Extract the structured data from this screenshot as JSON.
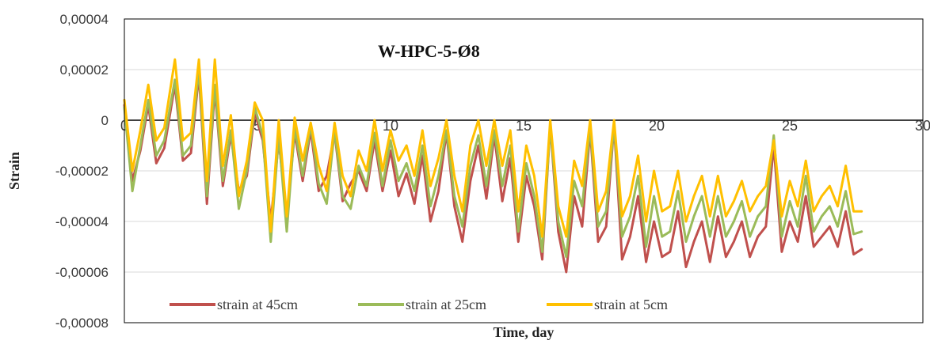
{
  "chart_data": {
    "type": "line",
    "title": "W-HPC-5-Ø8",
    "xlabel": "Time, day",
    "ylabel": "Strain",
    "xlim": [
      0,
      30
    ],
    "ylim": [
      -8e-05,
      4e-05
    ],
    "x_ticks": [
      0,
      5,
      10,
      15,
      20,
      25,
      30
    ],
    "x_tick_labels": [
      "0",
      "5",
      "10",
      "15",
      "20",
      "25",
      "30"
    ],
    "y_ticks": [
      4e-05,
      2e-05,
      0,
      -2e-05,
      -4e-05,
      -6e-05,
      -8e-05
    ],
    "y_tick_labels": [
      "0,00004",
      "0,00002",
      "0",
      "-0,00002",
      "-0,00004",
      "-0,00006",
      "-0,00008"
    ],
    "grid": "horizontal",
    "legend_position": "bottom-left",
    "series": [
      {
        "name": "strain at 45cm",
        "color": "#c0504d",
        "points": [
          [
            0,
            6e-06
          ],
          [
            0.3,
            -2.4e-05
          ],
          [
            0.6,
            -1.2e-05
          ],
          [
            0.9,
            6e-06
          ],
          [
            1.2,
            -1.7e-05
          ],
          [
            1.5,
            -1.1e-05
          ],
          [
            1.9,
            1.4e-05
          ],
          [
            2.2,
            -1.6e-05
          ],
          [
            2.5,
            -1.3e-05
          ],
          [
            2.8,
            1.8e-05
          ],
          [
            3.1,
            -3.3e-05
          ],
          [
            3.4,
            1.2e-05
          ],
          [
            3.7,
            -2.6e-05
          ],
          [
            4.0,
            -6e-06
          ],
          [
            4.3,
            -2.8e-05
          ],
          [
            4.6,
            -2.2e-05
          ],
          [
            4.9,
            3e-06
          ],
          [
            5.2,
            -8e-06
          ],
          [
            5.5,
            -4e-05
          ],
          [
            5.8,
            -8e-06
          ],
          [
            6.1,
            -3.8e-05
          ],
          [
            6.4,
            -5e-06
          ],
          [
            6.7,
            -2.4e-05
          ],
          [
            7.0,
            -4e-06
          ],
          [
            7.3,
            -2.8e-05
          ],
          [
            7.6,
            -2.2e-05
          ],
          [
            7.9,
            -5e-06
          ],
          [
            8.2,
            -3.2e-05
          ],
          [
            8.5,
            -2.5e-05
          ],
          [
            8.8,
            -2e-05
          ],
          [
            9.1,
            -2.8e-05
          ],
          [
            9.4,
            -8e-06
          ],
          [
            9.7,
            -2.8e-05
          ],
          [
            10.0,
            -1.2e-05
          ],
          [
            10.3,
            -3e-05
          ],
          [
            10.6,
            -2.1e-05
          ],
          [
            10.9,
            -3.3e-05
          ],
          [
            11.2,
            -1.4e-05
          ],
          [
            11.5,
            -4e-05
          ],
          [
            11.8,
            -2.8e-05
          ],
          [
            12.1,
            -5e-06
          ],
          [
            12.4,
            -3.4e-05
          ],
          [
            12.7,
            -4.8e-05
          ],
          [
            13.0,
            -2.4e-05
          ],
          [
            13.3,
            -1e-05
          ],
          [
            13.6,
            -3.1e-05
          ],
          [
            13.9,
            -6e-06
          ],
          [
            14.2,
            -3.2e-05
          ],
          [
            14.5,
            -1.5e-05
          ],
          [
            14.8,
            -4.8e-05
          ],
          [
            15.1,
            -2.2e-05
          ],
          [
            15.4,
            -3.4e-05
          ],
          [
            15.7,
            -5.5e-05
          ],
          [
            16.0,
            -2e-06
          ],
          [
            16.3,
            -4.4e-05
          ],
          [
            16.6,
            -6e-05
          ],
          [
            16.9,
            -3e-05
          ],
          [
            17.2,
            -4.2e-05
          ],
          [
            17.5,
            -4e-06
          ],
          [
            17.8,
            -4.8e-05
          ],
          [
            18.1,
            -4.2e-05
          ],
          [
            18.4,
            -2e-06
          ],
          [
            18.7,
            -5.5e-05
          ],
          [
            19.0,
            -4.6e-05
          ],
          [
            19.3,
            -3e-05
          ],
          [
            19.6,
            -5.6e-05
          ],
          [
            19.9,
            -4e-05
          ],
          [
            20.2,
            -5.4e-05
          ],
          [
            20.5,
            -5.2e-05
          ],
          [
            20.8,
            -3.6e-05
          ],
          [
            21.1,
            -5.8e-05
          ],
          [
            21.4,
            -4.8e-05
          ],
          [
            21.7,
            -4e-05
          ],
          [
            22.0,
            -5.6e-05
          ],
          [
            22.3,
            -3.8e-05
          ],
          [
            22.6,
            -5.4e-05
          ],
          [
            22.9,
            -4.8e-05
          ],
          [
            23.2,
            -4e-05
          ],
          [
            23.5,
            -5.4e-05
          ],
          [
            23.8,
            -4.6e-05
          ],
          [
            24.1,
            -4.2e-05
          ],
          [
            24.4,
            -1e-05
          ],
          [
            24.7,
            -5.2e-05
          ],
          [
            25.0,
            -4e-05
          ],
          [
            25.3,
            -4.8e-05
          ],
          [
            25.6,
            -3e-05
          ],
          [
            25.9,
            -5e-05
          ],
          [
            26.2,
            -4.6e-05
          ],
          [
            26.5,
            -4.2e-05
          ],
          [
            26.8,
            -5e-05
          ],
          [
            27.1,
            -3.6e-05
          ],
          [
            27.4,
            -5.3e-05
          ],
          [
            27.7,
            -5.1e-05
          ]
        ]
      },
      {
        "name": "strain at 25cm",
        "color": "#9bbb59",
        "points": [
          [
            0,
            5e-06
          ],
          [
            0.3,
            -2.8e-05
          ],
          [
            0.6,
            -1e-05
          ],
          [
            0.9,
            8e-06
          ],
          [
            1.2,
            -1.4e-05
          ],
          [
            1.5,
            -8e-06
          ],
          [
            1.9,
            1.6e-05
          ],
          [
            2.2,
            -1.4e-05
          ],
          [
            2.5,
            -1e-05
          ],
          [
            2.8,
            2e-05
          ],
          [
            3.1,
            -3e-05
          ],
          [
            3.4,
            1.4e-05
          ],
          [
            3.7,
            -2.4e-05
          ],
          [
            4.0,
            -4e-06
          ],
          [
            4.3,
            -3.5e-05
          ],
          [
            4.6,
            -2e-05
          ],
          [
            4.9,
            5e-06
          ],
          [
            5.2,
            -6e-06
          ],
          [
            5.5,
            -4.8e-05
          ],
          [
            5.8,
            -6e-06
          ],
          [
            6.1,
            -4.4e-05
          ],
          [
            6.4,
            -3e-06
          ],
          [
            6.7,
            -2.2e-05
          ],
          [
            7.0,
            -2e-06
          ],
          [
            7.3,
            -2.5e-05
          ],
          [
            7.6,
            -3.3e-05
          ],
          [
            7.9,
            -4e-06
          ],
          [
            8.2,
            -3e-05
          ],
          [
            8.5,
            -3.5e-05
          ],
          [
            8.8,
            -1.8e-05
          ],
          [
            9.1,
            -2.6e-05
          ],
          [
            9.4,
            -5e-06
          ],
          [
            9.7,
            -2.6e-05
          ],
          [
            10.0,
            -8e-06
          ],
          [
            10.3,
            -2.4e-05
          ],
          [
            10.6,
            -1.7e-05
          ],
          [
            10.9,
            -2.8e-05
          ],
          [
            11.2,
            -1e-05
          ],
          [
            11.5,
            -3.4e-05
          ],
          [
            11.8,
            -2.2e-05
          ],
          [
            12.1,
            -4e-06
          ],
          [
            12.4,
            -3e-05
          ],
          [
            12.7,
            -4.2e-05
          ],
          [
            13.0,
            -1.8e-05
          ],
          [
            13.3,
            -6e-06
          ],
          [
            13.6,
            -2.6e-05
          ],
          [
            13.9,
            -4e-06
          ],
          [
            14.2,
            -2.6e-05
          ],
          [
            14.5,
            -1e-05
          ],
          [
            14.8,
            -4.4e-05
          ],
          [
            15.1,
            -1.7e-05
          ],
          [
            15.4,
            -3e-05
          ],
          [
            15.7,
            -5.2e-05
          ],
          [
            16.0,
            -2e-06
          ],
          [
            16.3,
            -4e-05
          ],
          [
            16.6,
            -5.4e-05
          ],
          [
            16.9,
            -2.4e-05
          ],
          [
            17.2,
            -3.4e-05
          ],
          [
            17.5,
            -3e-06
          ],
          [
            17.8,
            -4.2e-05
          ],
          [
            18.1,
            -3.6e-05
          ],
          [
            18.4,
            -2e-06
          ],
          [
            18.7,
            -4.6e-05
          ],
          [
            19.0,
            -3.8e-05
          ],
          [
            19.3,
            -2.2e-05
          ],
          [
            19.6,
            -5e-05
          ],
          [
            19.9,
            -3e-05
          ],
          [
            20.2,
            -4.6e-05
          ],
          [
            20.5,
            -4.4e-05
          ],
          [
            20.8,
            -2.8e-05
          ],
          [
            21.1,
            -4.8e-05
          ],
          [
            21.4,
            -3.8e-05
          ],
          [
            21.7,
            -3e-05
          ],
          [
            22.0,
            -4.6e-05
          ],
          [
            22.3,
            -3e-05
          ],
          [
            22.6,
            -4.6e-05
          ],
          [
            22.9,
            -4e-05
          ],
          [
            23.2,
            -3.2e-05
          ],
          [
            23.5,
            -4.6e-05
          ],
          [
            23.8,
            -3.8e-05
          ],
          [
            24.1,
            -3.4e-05
          ],
          [
            24.4,
            -6e-06
          ],
          [
            24.7,
            -4.6e-05
          ],
          [
            25.0,
            -3.2e-05
          ],
          [
            25.3,
            -4.2e-05
          ],
          [
            25.6,
            -2.2e-05
          ],
          [
            25.9,
            -4.4e-05
          ],
          [
            26.2,
            -3.8e-05
          ],
          [
            26.5,
            -3.4e-05
          ],
          [
            26.8,
            -4.2e-05
          ],
          [
            27.1,
            -2.8e-05
          ],
          [
            27.4,
            -4.5e-05
          ],
          [
            27.7,
            -4.4e-05
          ]
        ]
      },
      {
        "name": "strain at 5cm",
        "color": "#ffc000",
        "points": [
          [
            0,
            8e-06
          ],
          [
            0.3,
            -2e-05
          ],
          [
            0.6,
            -4e-06
          ],
          [
            0.9,
            1.4e-05
          ],
          [
            1.2,
            -8e-06
          ],
          [
            1.5,
            -3e-06
          ],
          [
            1.9,
            2.4e-05
          ],
          [
            2.2,
            -8e-06
          ],
          [
            2.5,
            -5e-06
          ],
          [
            2.8,
            2.4e-05
          ],
          [
            3.1,
            -2.4e-05
          ],
          [
            3.4,
            2.4e-05
          ],
          [
            3.7,
            -1.8e-05
          ],
          [
            4.0,
            2e-06
          ],
          [
            4.3,
            -3e-05
          ],
          [
            4.6,
            -1.6e-05
          ],
          [
            4.9,
            7e-06
          ],
          [
            5.2,
            0.0
          ],
          [
            5.5,
            -4.4e-05
          ],
          [
            5.8,
            0.0
          ],
          [
            6.1,
            -3.8e-05
          ],
          [
            6.4,
            1e-06
          ],
          [
            6.7,
            -1.6e-05
          ],
          [
            7.0,
            -1e-06
          ],
          [
            7.3,
            -1.8e-05
          ],
          [
            7.6,
            -2.8e-05
          ],
          [
            7.9,
            -1e-06
          ],
          [
            8.2,
            -2.2e-05
          ],
          [
            8.5,
            -3e-05
          ],
          [
            8.8,
            -1.2e-05
          ],
          [
            9.1,
            -2e-05
          ],
          [
            9.4,
            0.0
          ],
          [
            9.7,
            -2e-05
          ],
          [
            10.0,
            -4e-06
          ],
          [
            10.3,
            -1.6e-05
          ],
          [
            10.6,
            -1e-05
          ],
          [
            10.9,
            -2.2e-05
          ],
          [
            11.2,
            -4e-06
          ],
          [
            11.5,
            -2.6e-05
          ],
          [
            11.8,
            -1.5e-05
          ],
          [
            12.1,
            0.0
          ],
          [
            12.4,
            -2.2e-05
          ],
          [
            12.7,
            -3.6e-05
          ],
          [
            13.0,
            -1e-05
          ],
          [
            13.3,
            0.0
          ],
          [
            13.6,
            -1.8e-05
          ],
          [
            13.9,
            0.0
          ],
          [
            14.2,
            -1.8e-05
          ],
          [
            14.5,
            -4e-06
          ],
          [
            14.8,
            -3.6e-05
          ],
          [
            15.1,
            -1e-05
          ],
          [
            15.4,
            -2.2e-05
          ],
          [
            15.7,
            -4.6e-05
          ],
          [
            16.0,
            0.0
          ],
          [
            16.3,
            -3.4e-05
          ],
          [
            16.6,
            -4.6e-05
          ],
          [
            16.9,
            -1.6e-05
          ],
          [
            17.2,
            -2.6e-05
          ],
          [
            17.5,
            0.0
          ],
          [
            17.8,
            -3.6e-05
          ],
          [
            18.1,
            -2.8e-05
          ],
          [
            18.4,
            0.0
          ],
          [
            18.7,
            -3.8e-05
          ],
          [
            19.0,
            -3e-05
          ],
          [
            19.3,
            -1.4e-05
          ],
          [
            19.6,
            -4e-05
          ],
          [
            19.9,
            -2e-05
          ],
          [
            20.2,
            -3.6e-05
          ],
          [
            20.5,
            -3.4e-05
          ],
          [
            20.8,
            -2e-05
          ],
          [
            21.1,
            -4e-05
          ],
          [
            21.4,
            -3e-05
          ],
          [
            21.7,
            -2.2e-05
          ],
          [
            22.0,
            -3.8e-05
          ],
          [
            22.3,
            -2.2e-05
          ],
          [
            22.6,
            -3.8e-05
          ],
          [
            22.9,
            -3.2e-05
          ],
          [
            23.2,
            -2.4e-05
          ],
          [
            23.5,
            -3.6e-05
          ],
          [
            23.8,
            -3e-05
          ],
          [
            24.1,
            -2.6e-05
          ],
          [
            24.4,
            -8e-06
          ],
          [
            24.7,
            -3.8e-05
          ],
          [
            25.0,
            -2.4e-05
          ],
          [
            25.3,
            -3.4e-05
          ],
          [
            25.6,
            -1.6e-05
          ],
          [
            25.9,
            -3.6e-05
          ],
          [
            26.2,
            -3e-05
          ],
          [
            26.5,
            -2.6e-05
          ],
          [
            26.8,
            -3.4e-05
          ],
          [
            27.1,
            -1.8e-05
          ],
          [
            27.4,
            -3.6e-05
          ],
          [
            27.7,
            -3.6e-05
          ]
        ]
      }
    ]
  }
}
